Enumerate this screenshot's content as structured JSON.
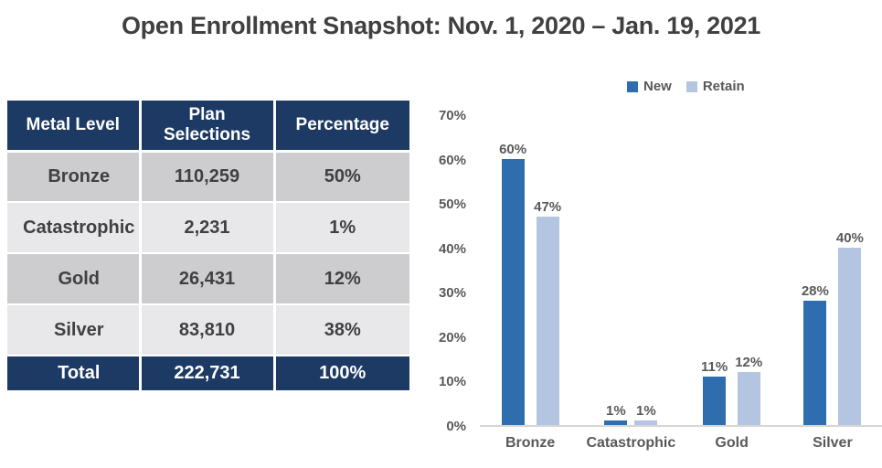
{
  "title": "Open Enrollment Snapshot: Nov. 1, 2020 – Jan. 19, 2021",
  "table": {
    "headers": [
      "Metal Level",
      "Plan\nSelections",
      "Percentage"
    ],
    "rows": [
      [
        "Bronze",
        "110,259",
        "50%"
      ],
      [
        "Catastrophic",
        "2,231",
        "1%"
      ],
      [
        "Gold",
        "26,431",
        "12%"
      ],
      [
        "Silver",
        "83,810",
        "38%"
      ]
    ],
    "total_row": [
      "Total",
      "222,731",
      "100%"
    ]
  },
  "chart_data": {
    "type": "bar",
    "categories": [
      "Bronze",
      "Catastrophic",
      "Gold",
      "Silver"
    ],
    "series": [
      {
        "name": "New",
        "color": "#2E6DAE",
        "values": [
          60,
          1,
          11,
          28
        ],
        "labels": [
          "60%",
          "1%",
          "11%",
          "28%"
        ]
      },
      {
        "name": "Retain",
        "color": "#B4C5E1",
        "values": [
          47,
          1,
          12,
          40
        ],
        "labels": [
          "47%",
          "1%",
          "12%",
          "40%"
        ]
      }
    ],
    "y_ticks": [
      "0%",
      "10%",
      "20%",
      "30%",
      "40%",
      "50%",
      "60%",
      "70%"
    ],
    "y_tick_values": [
      0,
      10,
      20,
      30,
      40,
      50,
      60,
      70
    ],
    "ylim": [
      0,
      70
    ],
    "grid": false,
    "legend_position": "top"
  },
  "colors": {
    "navy": "#1C3A63",
    "row_dark": "#CDCDCF",
    "row_light": "#E8E8EA",
    "title_text": "#404040",
    "axis_text": "#595959",
    "bar_new": "#2E6DAE",
    "bar_retain": "#B4C5E1",
    "axis_line": "#D6D6D6"
  }
}
